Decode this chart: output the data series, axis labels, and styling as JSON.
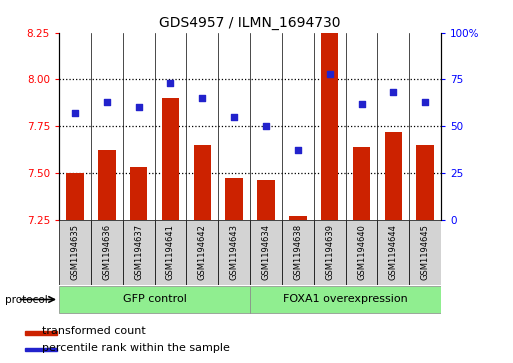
{
  "title": "GDS4957 / ILMN_1694730",
  "samples": [
    "GSM1194635",
    "GSM1194636",
    "GSM1194637",
    "GSM1194641",
    "GSM1194642",
    "GSM1194643",
    "GSM1194634",
    "GSM1194638",
    "GSM1194639",
    "GSM1194640",
    "GSM1194644",
    "GSM1194645"
  ],
  "bar_values": [
    7.5,
    7.62,
    7.53,
    7.9,
    7.65,
    7.47,
    7.46,
    7.27,
    8.25,
    7.64,
    7.72,
    7.65
  ],
  "dot_values": [
    57,
    63,
    60,
    73,
    65,
    55,
    50,
    37,
    78,
    62,
    68,
    63
  ],
  "bar_color": "#cc2200",
  "dot_color": "#2222cc",
  "ylim_left": [
    7.25,
    8.25
  ],
  "ylim_right": [
    0,
    100
  ],
  "yticks_left": [
    7.25,
    7.5,
    7.75,
    8.0,
    8.25
  ],
  "yticks_right": [
    0,
    25,
    50,
    75,
    100
  ],
  "ytick_labels_right": [
    "0",
    "25",
    "50",
    "75",
    "100%"
  ],
  "hlines": [
    7.5,
    7.75,
    8.0
  ],
  "bar_bottom": 7.25,
  "background_color": "#ffffff",
  "label_fontsize": 7,
  "title_fontsize": 10,
  "legend_items": [
    {
      "color": "#cc2200",
      "label": "transformed count"
    },
    {
      "color": "#2222cc",
      "label": "percentile rank within the sample"
    }
  ]
}
